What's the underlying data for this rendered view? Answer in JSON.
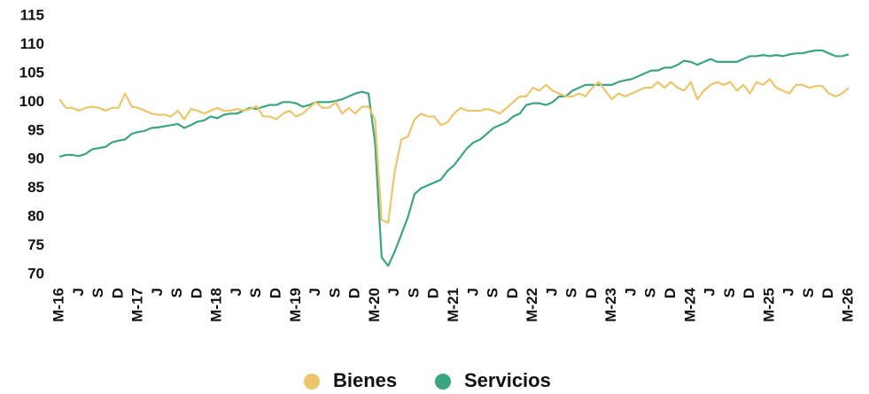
{
  "chart_data": {
    "type": "line",
    "categories": [
      "M-16",
      null,
      null,
      "J",
      null,
      null,
      "S",
      null,
      null,
      "D",
      null,
      null,
      "M-17",
      null,
      null,
      "J",
      null,
      null,
      "S",
      null,
      null,
      "D",
      null,
      null,
      "M-18",
      null,
      null,
      "J",
      null,
      null,
      "S",
      null,
      null,
      "D",
      null,
      null,
      "M-19",
      null,
      null,
      "J",
      null,
      null,
      "S",
      null,
      null,
      "D",
      null,
      null,
      "M-20",
      null,
      null,
      "J",
      null,
      null,
      "S",
      null,
      null,
      "D",
      null,
      null,
      "M-21",
      null,
      null,
      "J",
      null,
      null,
      "S",
      null,
      null,
      "D",
      null,
      null,
      "M-22",
      null,
      null,
      "J",
      null,
      null,
      "S",
      null,
      null,
      "D",
      null,
      null,
      "M-23",
      null,
      null,
      "J",
      null,
      null,
      "S",
      null,
      null,
      "D",
      null,
      null,
      "M-24",
      null,
      null,
      "J",
      null,
      null,
      "S",
      null,
      null,
      "D",
      null,
      null,
      "M-25",
      null,
      null,
      "J",
      null,
      null,
      "S",
      null,
      null,
      "D",
      null,
      null,
      "M-26"
    ],
    "series": [
      {
        "name": "Bienes",
        "color": "#ebc66c",
        "values": [
          100.5,
          99,
          99,
          98.5,
          99,
          99.2,
          99,
          98.5,
          99,
          99,
          101.5,
          99.2,
          99,
          98.5,
          98,
          97.8,
          97.8,
          97.5,
          98.5,
          97,
          98.8,
          98.5,
          98,
          98.5,
          99,
          98.5,
          98.5,
          98.8,
          98.5,
          98.8,
          99.3,
          97.5,
          97.5,
          97,
          98,
          98.5,
          97.5,
          98,
          99,
          100,
          99,
          99,
          100,
          98,
          99,
          98,
          99.2,
          99.2,
          97,
          79.5,
          79,
          88,
          93.5,
          94,
          97,
          98,
          97.5,
          97.5,
          96,
          96.5,
          98,
          99,
          98.5,
          98.5,
          98.5,
          98.8,
          98.5,
          98,
          99,
          100,
          101,
          101,
          102.5,
          102,
          103,
          102,
          101.5,
          101,
          101,
          101.5,
          101,
          102.5,
          103.5,
          102,
          100.5,
          101.5,
          101,
          101.5,
          102,
          102.5,
          102.5,
          103.5,
          102.5,
          103.5,
          102.5,
          102,
          103.5,
          100.5,
          102,
          103,
          103.5,
          103,
          103.5,
          102,
          103,
          101.5,
          103.5,
          103,
          104,
          102.5,
          102,
          101.5,
          103,
          103,
          102.5,
          102.8,
          102.8,
          101.5,
          101,
          101.5,
          102.5
        ]
      },
      {
        "name": "Servicios",
        "color": "#3aa57f",
        "values": [
          90.5,
          90.8,
          90.8,
          90.6,
          91,
          91.8,
          92,
          92.2,
          93,
          93.3,
          93.5,
          94.5,
          94.8,
          95,
          95.5,
          95.6,
          95.8,
          96,
          96.2,
          95.5,
          96,
          96.6,
          96.8,
          97.5,
          97.2,
          97.8,
          98,
          98,
          98.5,
          99,
          98.8,
          99.2,
          99.5,
          99.5,
          100,
          100,
          99.8,
          99.2,
          99.5,
          100,
          100,
          100,
          100.2,
          100.5,
          101,
          101.5,
          101.8,
          101.5,
          93,
          73,
          71.5,
          74,
          77,
          80,
          84,
          85,
          85.5,
          86,
          86.5,
          88,
          89,
          90.5,
          92,
          93,
          93.5,
          94.5,
          95.5,
          96,
          96.5,
          97.5,
          98,
          99.5,
          99.8,
          99.8,
          99.5,
          100,
          101,
          101,
          102,
          102.5,
          103,
          103,
          103,
          103,
          103,
          103.5,
          103.8,
          104,
          104.5,
          105,
          105.5,
          105.5,
          106,
          106,
          106.5,
          107.2,
          107,
          106.5,
          107,
          107.5,
          107,
          107,
          107,
          107,
          107.5,
          108,
          108,
          108.2,
          108,
          108.2,
          108,
          108.3,
          108.5,
          108.5,
          108.8,
          109,
          109,
          108.5,
          108,
          108,
          108.3
        ]
      }
    ],
    "ylim": [
      70,
      115
    ],
    "yticks": [
      70,
      75,
      80,
      85,
      90,
      95,
      100,
      105,
      110,
      115
    ],
    "grid": false,
    "legend": "bottom"
  }
}
